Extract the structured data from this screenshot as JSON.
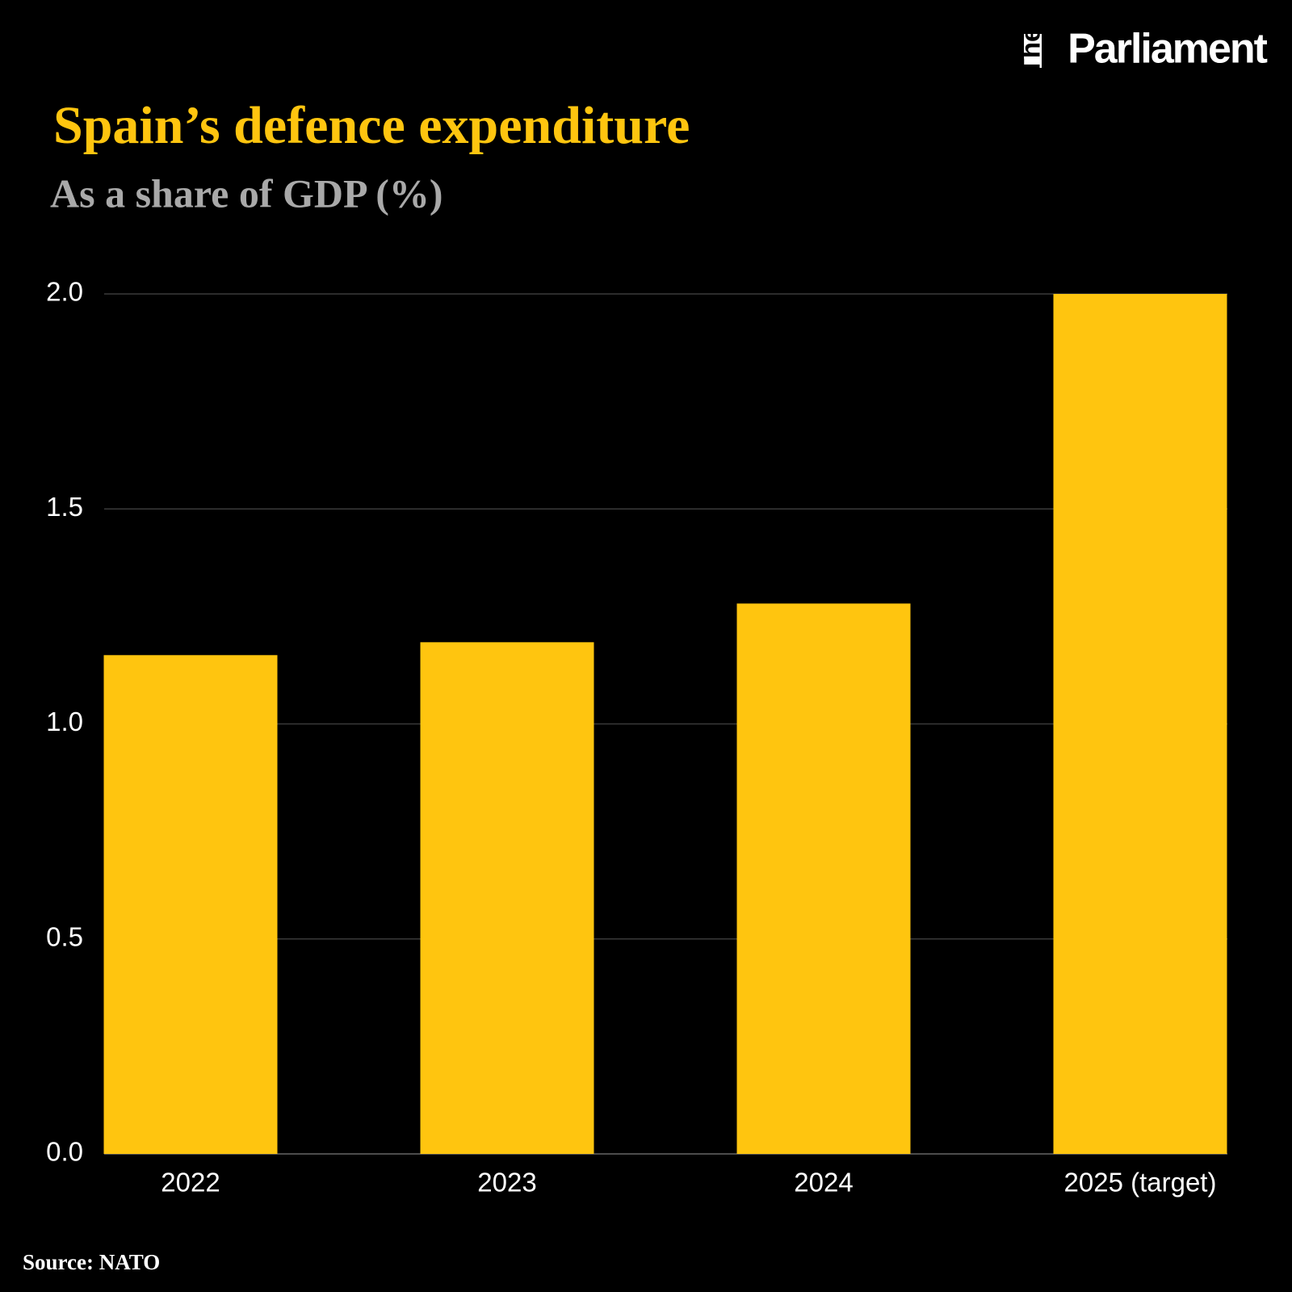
{
  "brand": {
    "prefix": "The",
    "name": "Parliament"
  },
  "chart_data": {
    "type": "bar",
    "title": "Spain’s defence expenditure",
    "subtitle": "As a share of GDP (%)",
    "categories": [
      "2022",
      "2023",
      "2024",
      "2025 (target)"
    ],
    "values": [
      1.16,
      1.19,
      1.28,
      2.0
    ],
    "color": "#ffc50f",
    "ylim": [
      0,
      2
    ],
    "yticks": [
      {
        "value": 0,
        "label": "0.0"
      },
      0.5,
      {
        "value": 1,
        "label": "1.0"
      },
      1.5,
      {
        "value": 2,
        "label": "2.0"
      }
    ],
    "grid": true,
    "source": "Source: NATO"
  }
}
